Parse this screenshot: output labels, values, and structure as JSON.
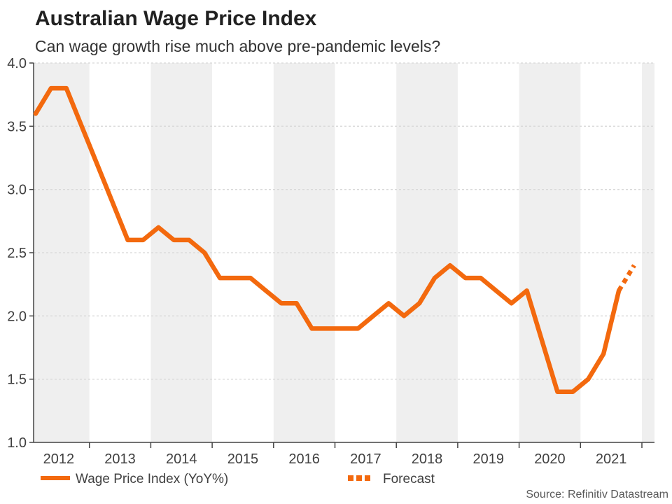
{
  "header": {
    "title": "Australian Wage Price Index",
    "subtitle": "Can wage growth rise much above pre-pandemic levels?"
  },
  "legend": {
    "series_label": "Wage Price Index (YoY%)",
    "forecast_label": "Forecast"
  },
  "footer": {
    "source": "Source: Refinitiv Datastream"
  },
  "chart_data": {
    "type": "line",
    "title": "Australian Wage Price Index",
    "subtitle": "Can wage growth rise much above pre-pandemic levels?",
    "source": "Source: Refinitiv Datastream",
    "xlabel": "",
    "ylabel": "",
    "ylim": [
      1.0,
      4.0
    ],
    "ytick_step": 0.5,
    "ytick_labels": [
      "4.0",
      "3.5",
      "3.0",
      "2.5",
      "2.0",
      "1.5",
      "1.0"
    ],
    "x_years": [
      2012,
      2013,
      2014,
      2015,
      2016,
      2017,
      2018,
      2019,
      2020,
      2021
    ],
    "shaded_band_years": [
      2012,
      2014,
      2016,
      2018,
      2020,
      2022
    ],
    "grid": "horizontal-dotted",
    "legend_position": "bottom-left",
    "frequency": "quarterly",
    "series": [
      {
        "name": "Wage Price Index (YoY%)",
        "style": "solid",
        "points": [
          [
            "2012Q1",
            3.6
          ],
          [
            "2012Q2",
            3.8
          ],
          [
            "2012Q3",
            3.8
          ],
          [
            "2012Q4",
            3.5
          ],
          [
            "2013Q1",
            3.2
          ],
          [
            "2013Q2",
            2.9
          ],
          [
            "2013Q3",
            2.6
          ],
          [
            "2013Q4",
            2.6
          ],
          [
            "2014Q1",
            2.7
          ],
          [
            "2014Q2",
            2.6
          ],
          [
            "2014Q3",
            2.6
          ],
          [
            "2014Q4",
            2.5
          ],
          [
            "2015Q1",
            2.3
          ],
          [
            "2015Q2",
            2.3
          ],
          [
            "2015Q3",
            2.3
          ],
          [
            "2015Q4",
            2.2
          ],
          [
            "2016Q1",
            2.1
          ],
          [
            "2016Q2",
            2.1
          ],
          [
            "2016Q3",
            1.9
          ],
          [
            "2016Q4",
            1.9
          ],
          [
            "2017Q1",
            1.9
          ],
          [
            "2017Q2",
            1.9
          ],
          [
            "2017Q3",
            2.0
          ],
          [
            "2017Q4",
            2.1
          ],
          [
            "2018Q1",
            2.0
          ],
          [
            "2018Q2",
            2.1
          ],
          [
            "2018Q3",
            2.3
          ],
          [
            "2018Q4",
            2.4
          ],
          [
            "2019Q1",
            2.3
          ],
          [
            "2019Q2",
            2.3
          ],
          [
            "2019Q3",
            2.2
          ],
          [
            "2019Q4",
            2.1
          ],
          [
            "2020Q1",
            2.2
          ],
          [
            "2020Q2",
            1.8
          ],
          [
            "2020Q3",
            1.4
          ],
          [
            "2020Q4",
            1.4
          ],
          [
            "2021Q1",
            1.5
          ],
          [
            "2021Q2",
            1.7
          ],
          [
            "2021Q3",
            2.2
          ]
        ]
      },
      {
        "name": "Forecast",
        "style": "dotted",
        "points": [
          [
            "2021Q3",
            2.2
          ],
          [
            "2021Q4",
            2.4
          ]
        ]
      }
    ],
    "colors": {
      "line": "#F3690E",
      "forecast": "#F3690E",
      "shaded_band": "#EFEFEF",
      "gridline": "#D8D8D8",
      "axis": "#444444",
      "tick_text": "#404040",
      "title_text": "#212121",
      "subtitle_text": "#333333",
      "source_text": "#595959"
    }
  }
}
